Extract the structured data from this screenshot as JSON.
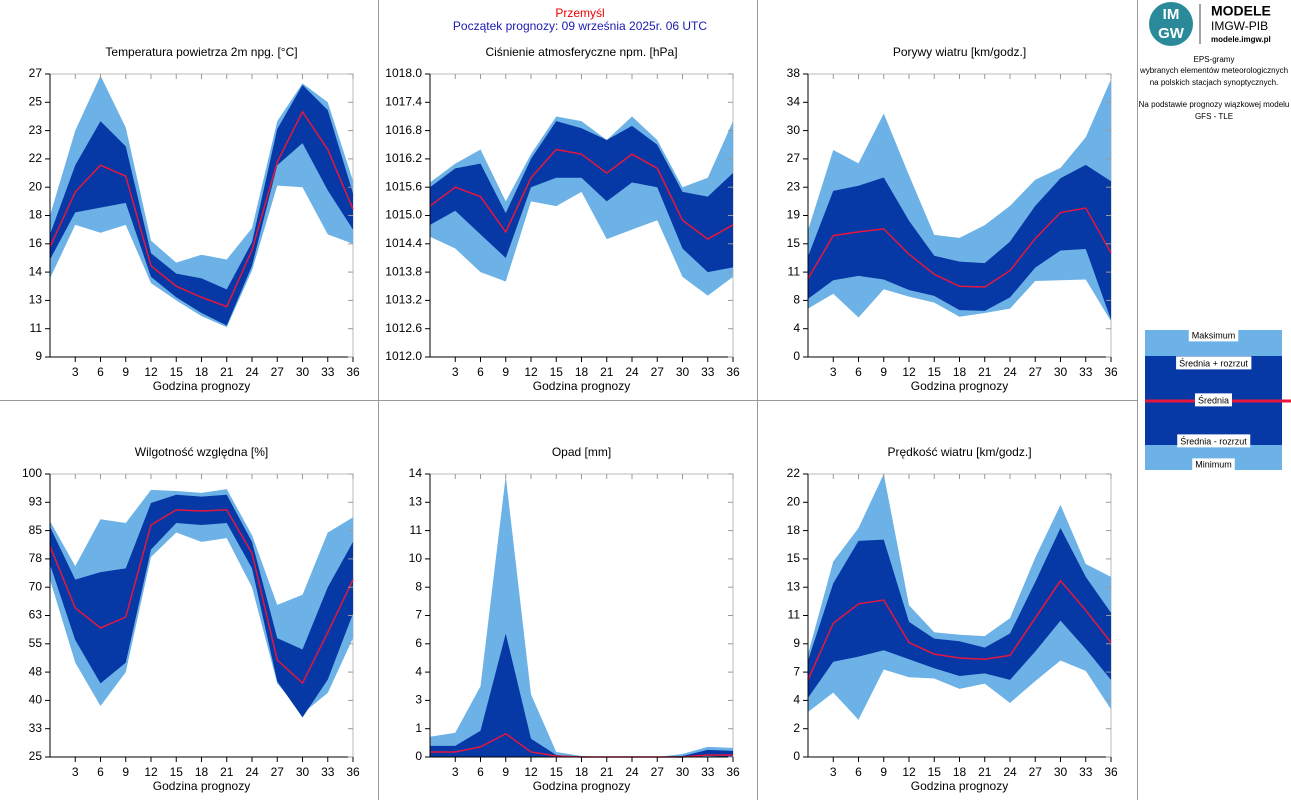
{
  "header": {
    "station": "Przemyśl",
    "forecast_start": "Początek prognozy: 09 września 2025r. 06 UTC"
  },
  "logo": {
    "mark_top": "IM",
    "mark_bottom": "GW",
    "title": "MODELE",
    "subtitle": "IMGW-PIB",
    "url": "modele.imgw.pl"
  },
  "description": [
    "EPS-gramy",
    "wybranych elementów meteorologicznych",
    "na polskich stacjach  synoptycznych.",
    "Na podstawie prognozy wiązkowej modelu",
    "GFS - TLE"
  ],
  "legend": [
    "Maksimum",
    "Średnia + rozrzut",
    "Średnia",
    "Średnia - rozrzut",
    "Minimum"
  ],
  "chart_data": [
    {
      "type": "band",
      "title": "Temperatura powietrza 2m npg. [°C]",
      "xlabel": "Godzina prognozy",
      "x": [
        0,
        3,
        6,
        9,
        12,
        15,
        18,
        21,
        24,
        27,
        30,
        33,
        36
      ],
      "xlim": [
        0,
        36
      ],
      "xticks": [
        3,
        6,
        9,
        12,
        15,
        18,
        21,
        24,
        27,
        30,
        33,
        36
      ],
      "ylim": [
        9,
        27
      ],
      "yticks": [
        9,
        {
          "value": 10.8,
          "label": "11"
        },
        {
          "value": 12.6,
          "label": "13"
        },
        {
          "value": 14.4,
          "label": "14"
        },
        {
          "value": 16.2,
          "label": "16"
        },
        18,
        {
          "value": 19.8,
          "label": "20"
        },
        {
          "value": 21.6,
          "label": "22"
        },
        {
          "value": 23.4,
          "label": "23"
        },
        {
          "value": 25.2,
          "label": "25"
        },
        27
      ],
      "colors": {
        "outer": "#6cb2e6",
        "inner": "#0638a6",
        "mean": "#e5173f"
      },
      "series": [
        {
          "values": [
            18.0,
            23.4,
            26.9,
            23.6,
            16.4,
            15.0,
            15.5,
            15.2,
            17.2,
            24.0,
            26.4,
            25.2,
            20.2
          ]
        },
        {
          "values": [
            16.8,
            21.2,
            24.0,
            22.4,
            15.6,
            14.3,
            14.0,
            13.3,
            16.3,
            23.5,
            26.3,
            24.7,
            19.4
          ]
        },
        {
          "values": [
            16.0,
            19.5,
            21.2,
            20.5,
            14.8,
            13.5,
            12.8,
            12.2,
            15.8,
            21.4,
            24.6,
            22.2,
            18.4
          ]
        },
        {
          "values": [
            15.2,
            18.2,
            18.5,
            18.8,
            14.1,
            12.8,
            11.8,
            11.0,
            14.8,
            21.2,
            22.6,
            19.6,
            17.1
          ]
        },
        {
          "values": [
            14.0,
            17.4,
            16.9,
            17.4,
            13.7,
            12.6,
            11.6,
            10.9,
            14.5,
            19.9,
            19.8,
            16.8,
            16.2
          ]
        }
      ]
    },
    {
      "type": "band",
      "title": "Ciśnienie atmosferyczne npm. [hPa]",
      "xlabel": "Godzina prognozy",
      "x": [
        0,
        3,
        6,
        9,
        12,
        15,
        18,
        21,
        24,
        27,
        30,
        33,
        36
      ],
      "xlim": [
        0,
        36
      ],
      "xticks": [
        3,
        6,
        9,
        12,
        15,
        18,
        21,
        24,
        27,
        30,
        33,
        36
      ],
      "ylim": [
        1012,
        1018
      ],
      "yticks": [
        {
          "value": 1012,
          "label": "1012.0"
        },
        1012.6,
        1013.2,
        1013.8,
        1014.4,
        {
          "value": 1015,
          "label": "1015.0"
        },
        1015.6,
        1016.2,
        1016.8,
        1017.4,
        {
          "value": 1018,
          "label": "1018.0"
        }
      ],
      "colors": {
        "outer": "#6cb2e6",
        "inner": "#0638a6",
        "mean": "#e5173f"
      },
      "series": [
        {
          "values": [
            1015.7,
            1016.1,
            1016.4,
            1015.3,
            1016.3,
            1017.1,
            1017.0,
            1016.6,
            1017.1,
            1016.6,
            1015.6,
            1015.8,
            1017.0
          ]
        },
        {
          "values": [
            1015.6,
            1016.0,
            1016.1,
            1015.05,
            1016.2,
            1017.0,
            1016.85,
            1016.6,
            1016.9,
            1016.5,
            1015.5,
            1015.4,
            1015.9
          ]
        },
        {
          "values": [
            1015.2,
            1015.6,
            1015.4,
            1014.65,
            1015.8,
            1016.4,
            1016.3,
            1015.9,
            1016.3,
            1016.0,
            1014.9,
            1014.5,
            1014.8
          ]
        },
        {
          "values": [
            1014.8,
            1015.1,
            1014.6,
            1014.1,
            1015.6,
            1015.8,
            1015.8,
            1015.3,
            1015.7,
            1015.6,
            1014.3,
            1013.8,
            1013.9
          ]
        },
        {
          "values": [
            1014.55,
            1014.3,
            1013.8,
            1013.6,
            1015.3,
            1015.2,
            1015.5,
            1014.5,
            1014.7,
            1014.9,
            1013.7,
            1013.3,
            1013.7
          ]
        }
      ]
    },
    {
      "type": "band",
      "title": "Porywy wiatru [km/godz.]",
      "xlabel": "Godzina prognozy",
      "x": [
        0,
        3,
        6,
        9,
        12,
        15,
        18,
        21,
        24,
        27,
        30,
        33,
        36
      ],
      "xlim": [
        0,
        36
      ],
      "xticks": [
        3,
        6,
        9,
        12,
        15,
        18,
        21,
        24,
        27,
        30,
        33,
        36
      ],
      "ylim": [
        0,
        38
      ],
      "yticks": [
        0,
        {
          "value": 3.8,
          "label": "4"
        },
        {
          "value": 7.6,
          "label": "8"
        },
        {
          "value": 11.4,
          "label": "11"
        },
        {
          "value": 15.2,
          "label": "15"
        },
        19,
        {
          "value": 22.8,
          "label": "23"
        },
        {
          "value": 26.6,
          "label": "27"
        },
        {
          "value": 30.4,
          "label": "30"
        },
        {
          "value": 34.2,
          "label": "34"
        },
        38
      ],
      "colors": {
        "outer": "#6cb2e6",
        "inner": "#0638a6",
        "mean": "#e5173f"
      },
      "series": [
        {
          "values": [
            17.0,
            27.8,
            26.0,
            32.7,
            24.4,
            16.4,
            16.0,
            17.7,
            20.3,
            23.8,
            25.4,
            29.5,
            37.3
          ]
        },
        {
          "values": [
            13.5,
            22.3,
            23.0,
            24.1,
            18.3,
            13.6,
            12.8,
            12.6,
            15.5,
            20.3,
            24.0,
            25.8,
            23.6
          ]
        },
        {
          "values": [
            10.5,
            16.3,
            16.8,
            17.2,
            13.8,
            11.1,
            9.5,
            9.4,
            11.6,
            15.9,
            19.4,
            20.0,
            14.0
          ]
        },
        {
          "values": [
            7.8,
            10.3,
            10.9,
            10.4,
            9.0,
            8.2,
            6.3,
            6.2,
            8.0,
            12.0,
            14.3,
            14.5,
            5.0
          ]
        },
        {
          "values": [
            6.5,
            8.5,
            5.3,
            9.1,
            8.1,
            7.3,
            5.4,
            5.9,
            6.5,
            10.2,
            10.3,
            10.4,
            4.8
          ]
        }
      ]
    },
    {
      "type": "band",
      "title": "Wilgotność względna [%]",
      "xlabel": "Godzina prognozy",
      "x": [
        0,
        3,
        6,
        9,
        12,
        15,
        18,
        21,
        24,
        27,
        30,
        33,
        36
      ],
      "xlim": [
        0,
        36
      ],
      "xticks": [
        3,
        6,
        9,
        12,
        15,
        18,
        21,
        24,
        27,
        30,
        33,
        36
      ],
      "ylim": [
        25,
        100
      ],
      "yticks": [
        25,
        {
          "value": 32.5,
          "label": "33"
        },
        40,
        {
          "value": 47.5,
          "label": "48"
        },
        55,
        {
          "value": 62.5,
          "label": "63"
        },
        70,
        {
          "value": 77.5,
          "label": "78"
        },
        85,
        {
          "value": 92.5,
          "label": "93"
        },
        100
      ],
      "colors": {
        "outer": "#6cb2e6",
        "inner": "#0638a6",
        "mean": "#e5173f"
      },
      "series": [
        {
          "values": [
            87.5,
            75.6,
            88,
            87,
            95.8,
            95.5,
            95,
            96,
            83.8,
            65.3,
            68,
            84.5,
            88.5
          ]
        },
        {
          "values": [
            86,
            72,
            74,
            75,
            92.3,
            94.5,
            94,
            94.5,
            82,
            56.5,
            53.5,
            70,
            82
          ]
        },
        {
          "values": [
            80.8,
            64.5,
            59.2,
            62.1,
            86.5,
            90.5,
            90.2,
            90.5,
            79,
            50.7,
            44.6,
            58,
            72
          ]
        },
        {
          "values": [
            76,
            56,
            44.5,
            50,
            80,
            87,
            86.5,
            87,
            75,
            45,
            35.5,
            45.5,
            63
          ]
        },
        {
          "values": [
            72,
            50,
            38.5,
            47.5,
            78,
            84.5,
            82,
            83,
            70,
            44.5,
            36.5,
            42,
            56.5
          ]
        }
      ]
    },
    {
      "type": "band",
      "title": "Opad [mm]",
      "xlabel": "Godzina prognozy",
      "x": [
        0,
        3,
        6,
        9,
        12,
        15,
        18,
        21,
        24,
        27,
        30,
        33,
        36
      ],
      "xlim": [
        0,
        36
      ],
      "xticks": [
        3,
        6,
        9,
        12,
        15,
        18,
        21,
        24,
        27,
        30,
        33,
        36
      ],
      "ylim": [
        0,
        14
      ],
      "yticks": [
        0,
        {
          "value": 1.4,
          "label": "1"
        },
        {
          "value": 2.8,
          "label": "3"
        },
        {
          "value": 4.2,
          "label": "4"
        },
        {
          "value": 5.6,
          "label": "6"
        },
        7,
        {
          "value": 8.4,
          "label": "8"
        },
        {
          "value": 9.8,
          "label": "10"
        },
        {
          "value": 11.2,
          "label": "11"
        },
        {
          "value": 12.6,
          "label": "13"
        },
        14
      ],
      "colors": {
        "outer": "#6cb2e6",
        "inner": "#0638a6",
        "mean": "#e5173f"
      },
      "series": [
        {
          "values": [
            1.0,
            1.2,
            3.5,
            13.9,
            3.1,
            0.25,
            0.05,
            0,
            0,
            0,
            0.15,
            0.5,
            0.45
          ]
        },
        {
          "values": [
            0.55,
            0.55,
            1.3,
            6.1,
            0.9,
            0.1,
            0,
            0,
            0,
            0,
            0.05,
            0.35,
            0.3
          ]
        },
        {
          "values": [
            0.25,
            0.25,
            0.5,
            1.15,
            0.25,
            0.05,
            0,
            0,
            0,
            0,
            0,
            0.1,
            0.1
          ]
        },
        {
          "values": [
            0,
            0,
            0,
            0,
            0,
            0,
            0,
            0,
            0,
            0,
            0,
            0.05,
            0
          ]
        },
        {
          "values": [
            0,
            0,
            0,
            0,
            0,
            0,
            0,
            0,
            0,
            0,
            0,
            0,
            0
          ]
        }
      ]
    },
    {
      "type": "band",
      "title": "Prędkość wiatru [km/godz.]",
      "xlabel": "Godzina prognozy",
      "x": [
        0,
        3,
        6,
        9,
        12,
        15,
        18,
        21,
        24,
        27,
        30,
        33,
        36
      ],
      "xlim": [
        0,
        36
      ],
      "xticks": [
        3,
        6,
        9,
        12,
        15,
        18,
        21,
        24,
        27,
        30,
        33,
        36
      ],
      "ylim": [
        0,
        22
      ],
      "yticks": [
        0,
        {
          "value": 2.2,
          "label": "2"
        },
        {
          "value": 4.4,
          "label": "4"
        },
        {
          "value": 6.6,
          "label": "7"
        },
        {
          "value": 8.8,
          "label": "9"
        },
        11,
        {
          "value": 13.2,
          "label": "13"
        },
        {
          "value": 15.4,
          "label": "15"
        },
        {
          "value": 17.6,
          "label": "18"
        },
        {
          "value": 19.8,
          "label": "20"
        },
        22
      ],
      "colors": {
        "outer": "#6cb2e6",
        "inner": "#0638a6",
        "mean": "#e5173f"
      },
      "series": [
        {
          "values": [
            8.0,
            15.2,
            17.8,
            22.0,
            11.8,
            9.7,
            9.5,
            9.4,
            10.8,
            15.5,
            19.6,
            15.0,
            14.0
          ]
        },
        {
          "values": [
            7.5,
            13.5,
            16.8,
            16.9,
            10.5,
            9.2,
            9.0,
            8.5,
            9.6,
            13.6,
            17.8,
            14.0,
            11.2
          ]
        },
        {
          "values": [
            6.0,
            10.4,
            11.9,
            12.2,
            8.9,
            8.0,
            7.7,
            7.6,
            7.9,
            10.8,
            13.7,
            11.4,
            8.9
          ]
        },
        {
          "values": [
            4.6,
            7.4,
            7.8,
            8.3,
            7.6,
            6.9,
            6.3,
            6.5,
            6.0,
            8.2,
            10.6,
            8.4,
            6.0
          ]
        },
        {
          "values": [
            3.5,
            5.0,
            2.9,
            6.8,
            6.2,
            6.1,
            5.3,
            5.7,
            4.2,
            5.9,
            7.5,
            6.7,
            3.7
          ]
        }
      ]
    }
  ]
}
